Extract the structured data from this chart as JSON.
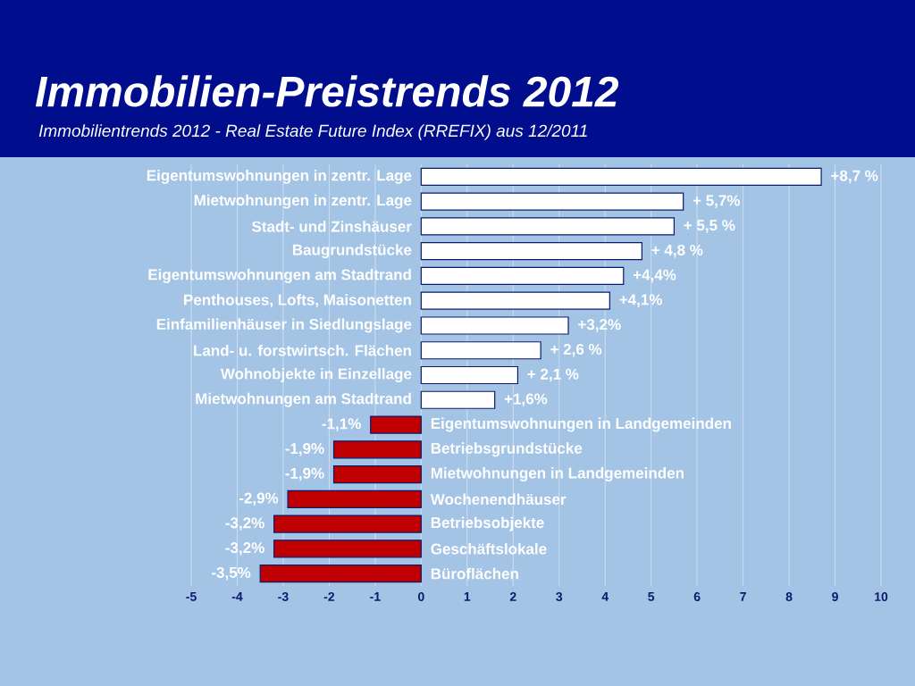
{
  "chart_data": {
    "type": "bar",
    "orientation": "horizontal",
    "title": "Immobilien-Preistrends 2012",
    "subtitle": "Immobilientrends 2012 - Real Estate Future Index (RREFIX) aus 12/2011",
    "categories": [
      "Eigentumswohnungen in zentr. Lage",
      "Mietwohnungen in zentr. Lage",
      "Stadt- und Zinshäuser",
      "Baugrundstücke",
      "Eigentumswohnungen am Stadtrand",
      "Penthouses, Lofts, Maisonetten",
      "Einfamilienhäuser in Siedlungslage",
      "Land- u. forstwirtsch. Flächen",
      "Wohnobjekte in Einzellage",
      "Mietwohnungen am Stadtrand",
      "Eigentumswohnungen in Landgemeinden",
      "Betriebsgrundstücke",
      "Mietwohnungen in Landgemeinden",
      "Wochenendhäuser",
      "Betriebsobjekte",
      "Geschäftslokale",
      "Büroflächen"
    ],
    "values": [
      8.7,
      5.7,
      5.5,
      4.8,
      4.4,
      4.1,
      3.2,
      2.6,
      2.1,
      1.6,
      -1.1,
      -1.9,
      -1.9,
      -2.9,
      -3.2,
      -3.2,
      -3.5
    ],
    "value_labels": [
      "+8,7 %",
      "+ 5,7%",
      "+ 5,5 %",
      "+ 4,8 %",
      "+4,4%",
      "+4,1%",
      "+3,2%",
      "+ 2,6 %",
      "+ 2,1 %",
      "+1,6%",
      "-1,1%",
      "-1,9%",
      "-1,9%",
      "-2,9%",
      "-3,2%",
      "-3,2%",
      "-3,5%"
    ],
    "colors": [
      "#ffffff",
      "#ffffff",
      "#ffffff",
      "#ffffff",
      "#ffffff",
      "#ffffff",
      "#ffffff",
      "#ffffff",
      "#ffffff",
      "#ffffff",
      "#c00000",
      "#c00000",
      "#c00000",
      "#c00000",
      "#c00000",
      "#c00000",
      "#c00000"
    ],
    "xlim": [
      -5,
      10
    ],
    "xticks": [
      -5,
      -4,
      -3,
      -2,
      -1,
      0,
      1,
      2,
      3,
      4,
      5,
      6,
      7,
      8,
      9,
      10
    ],
    "grid": "x"
  }
}
